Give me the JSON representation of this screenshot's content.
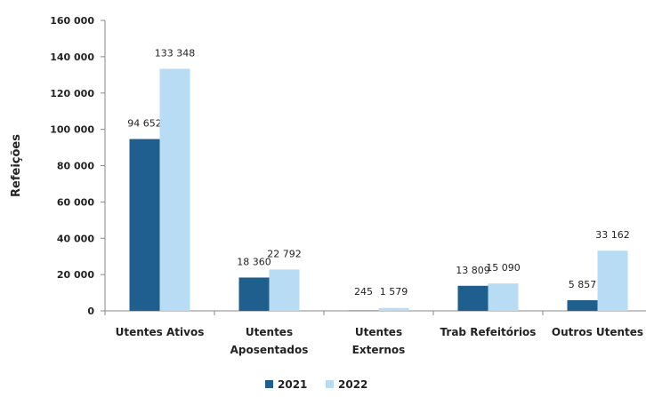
{
  "chart_data": {
    "type": "bar",
    "ylabel": "Refeições",
    "ylim": [
      0,
      160000
    ],
    "ytick_values": [
      0,
      20000,
      40000,
      60000,
      80000,
      100000,
      120000,
      140000,
      160000
    ],
    "ytick_labels": [
      "0",
      "20 000",
      "40 000",
      "60 000",
      "80 000",
      "100 000",
      "120 000",
      "140 000",
      "160 000"
    ],
    "categories": [
      [
        "Utentes Ativos"
      ],
      [
        "Utentes",
        "Aposentados"
      ],
      [
        "Utentes",
        "Externos"
      ],
      [
        "Trab Refeitórios"
      ],
      [
        "Outros Utentes"
      ]
    ],
    "series": [
      {
        "name": "2021",
        "color": "#1f5f8e",
        "values": [
          94652,
          18360,
          245,
          13809,
          5857
        ],
        "labels": [
          "94 652",
          "18 360",
          "245",
          "13 809",
          "5 857"
        ]
      },
      {
        "name": "2022",
        "color": "#b8dcf4",
        "values": [
          133348,
          22792,
          1579,
          15090,
          33162
        ],
        "labels": [
          "133 348",
          "22 792",
          "1 579",
          "15 090",
          "33 162"
        ]
      }
    ],
    "grid": false,
    "legend_position": "bottom"
  }
}
